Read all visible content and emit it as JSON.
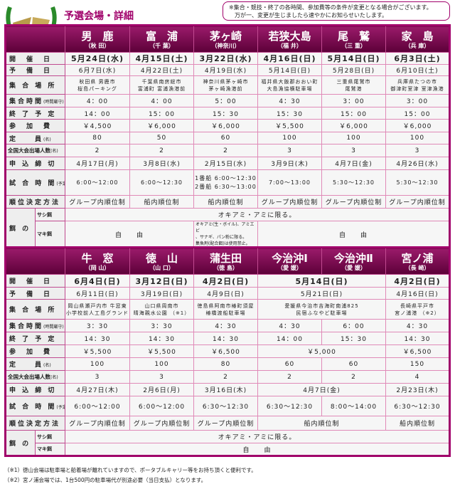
{
  "header": {
    "title": "予選会場・詳細",
    "notice_line1": "※集合・競技・終了の各時間、参加費等の条件が変更となる場合がございます。",
    "notice_line2": "万が一、変更が生じましたら速やかにお知らせいたします。",
    "logo_icon": "laurel-fish-logo"
  },
  "colors": {
    "accent": "#a0006a",
    "header_bg": "#5c0038",
    "sunday": "#e0001c",
    "saturday": "#1040c0"
  },
  "tables": [
    {
      "venues": [
        {
          "name": "男　鹿",
          "pref": "（秋 田）"
        },
        {
          "name": "富　浦",
          "pref": "（千 葉）"
        },
        {
          "name": "茅ヶ崎",
          "pref": "（神奈川）"
        },
        {
          "name": "若狭大島",
          "pref": "（福 井）"
        },
        {
          "name": "尾　鷲",
          "pref": "（三 重）"
        },
        {
          "name": "家　島",
          "pref": "（兵 庫）"
        }
      ],
      "rows": [
        {
          "label": "開　催　日",
          "cls": "big",
          "h": 16,
          "cells": [
            {
              "t": "5月24日(水)"
            },
            {
              "t": "4月15日(土)"
            },
            {
              "t": "3月22日(水)"
            },
            {
              "t": "4月16日(日)"
            },
            {
              "t": "5月14日(日)"
            },
            {
              "t": "6月3日(土)"
            }
          ]
        },
        {
          "label": "予　備　日",
          "h": 16,
          "cells": [
            {
              "t": "6月7日(水)"
            },
            {
              "t": "4月22日(土)"
            },
            {
              "t": "4月19日(水)"
            },
            {
              "t": "5月14日(日)"
            },
            {
              "t": "5月28日(日)"
            },
            {
              "t": "6月10日(土)"
            }
          ]
        },
        {
          "label": "集 合 場 所",
          "cls": "small",
          "h": 26,
          "cells": [
            {
              "t": "秋田県 男鹿市\n桜島パーキング"
            },
            {
              "t": "千葉県南房総市\n富浦町 富浦漁港前"
            },
            {
              "t": "神奈川県茅ヶ崎市\n茅ヶ崎漁港前"
            },
            {
              "t": "福井県大飯郡おおい町\n大島漁協横駐車場"
            },
            {
              "t": "三重県尾鷲市\n尾鷲港"
            },
            {
              "t": "兵庫県たつの市\n御津町室津 室津漁港"
            }
          ]
        },
        {
          "label": "集合時間",
          "sub": "(時間厳守)",
          "h": 18,
          "cells": [
            {
              "t": "4：00"
            },
            {
              "t": "4：00"
            },
            {
              "t": "5：00"
            },
            {
              "t": "4：30"
            },
            {
              "t": "3：00"
            },
            {
              "t": "3：00"
            }
          ]
        },
        {
          "label": "終 了 予 定",
          "h": 17,
          "cells": [
            {
              "t": "14：00"
            },
            {
              "t": "15：00"
            },
            {
              "t": "15：30"
            },
            {
              "t": "15：30"
            },
            {
              "t": "15：00"
            },
            {
              "t": "15：00"
            }
          ]
        },
        {
          "label": "参　加　費",
          "h": 18,
          "cells": [
            {
              "t": "￥4,500"
            },
            {
              "t": "￥6,000"
            },
            {
              "t": "￥6,000"
            },
            {
              "t": "￥5,500"
            },
            {
              "t": "￥6,000"
            },
            {
              "t": "￥6,000"
            }
          ]
        },
        {
          "label": "定　　員",
          "sub": "(名)",
          "h": 17,
          "cells": [
            {
              "t": "80"
            },
            {
              "t": "50"
            },
            {
              "t": "60"
            },
            {
              "t": "100"
            },
            {
              "t": "100"
            },
            {
              "t": "100"
            }
          ]
        },
        {
          "label": "全国大会出場人数",
          "sub": "(名)",
          "tight": true,
          "h": 18,
          "cells": [
            {
              "t": "2"
            },
            {
              "t": "2"
            },
            {
              "t": "2"
            },
            {
              "t": "3"
            },
            {
              "t": "3"
            },
            {
              "t": "3"
            }
          ]
        },
        {
          "label": "申 込 締 切",
          "h": 18,
          "cells": [
            {
              "t": "4月17日(月)"
            },
            {
              "t": "3月8日(水)"
            },
            {
              "t": "2月15日(水)"
            },
            {
              "t": "3月9日(木)"
            },
            {
              "t": "4月7日(金)"
            },
            {
              "t": "4月26日(水)"
            }
          ]
        },
        {
          "label": "試 合 時 間",
          "sub": "(予定)",
          "cls": "multi",
          "h": 36,
          "cells": [
            {
              "t": "6:00～12:00"
            },
            {
              "t": "6:00～12:30"
            },
            {
              "t": "1番船 6:00～12:30\n2番船 6:30～13:00"
            },
            {
              "t": "7:00～13:00"
            },
            {
              "t": "5:30～12:30"
            },
            {
              "t": "5:30～12:30"
            }
          ]
        },
        {
          "label": "順位決定方法",
          "h": 18,
          "cells": [
            {
              "t": "グループ内順位制"
            },
            {
              "t": "船内順位制"
            },
            {
              "t": "船内順位制"
            },
            {
              "t": "グループ内順位制"
            },
            {
              "t": "グループ内順位制"
            },
            {
              "t": "グループ内順位制"
            }
          ]
        }
      ],
      "bait": {
        "label": "餌 の 規 定",
        "sashi_label": "サシ餌",
        "maki_label": "マキ餌",
        "sashi": [
          {
            "t": "オキアミ・アミに限る。",
            "span": 6
          }
        ],
        "maki": [
          {
            "t": "自　　由",
            "span": 2
          },
          {
            "t": "オキアミ(生・ボイル)、アミエビ\n、サナギ、パン粉に限る。\n集魚剤(配合餌)は使用禁止。",
            "small": true
          },
          {
            "t": "自　　由",
            "span": 3
          }
        ],
        "maki_h": 38
      }
    },
    {
      "venues": [
        {
          "name": "牛　窓",
          "pref": "（岡 山）"
        },
        {
          "name": "徳　山",
          "pref": "（山 口）"
        },
        {
          "name": "蒲生田",
          "pref": "（徳 島）"
        },
        {
          "name": "今治沖Ⅰ",
          "pref": "（愛 媛）"
        },
        {
          "name": "今治沖Ⅱ",
          "pref": "（愛 媛）"
        },
        {
          "name": "宮ノ浦",
          "pref": "（長 崎）"
        }
      ],
      "rows": [
        {
          "label": "開　催　日",
          "cls": "big",
          "h": 18,
          "cells": [
            {
              "t": "6月4日(日)"
            },
            {
              "t": "3月12日(日)"
            },
            {
              "t": "4月2日(日)"
            },
            {
              "t": "5月14日(日)",
              "span": 2
            },
            {
              "t": "4月2日(日)"
            }
          ]
        },
        {
          "label": "予　備　日",
          "h": 17,
          "cells": [
            {
              "t": "6月11日(日)"
            },
            {
              "t": "3月19日(日)"
            },
            {
              "t": "4月9日(日)"
            },
            {
              "t": "5月21日(日)",
              "span": 2
            },
            {
              "t": "4月16日(日)"
            }
          ]
        },
        {
          "label": "集 合 場 所",
          "cls": "small",
          "h": 28,
          "cells": [
            {
              "t": "岡山県瀬戸内市 牛窓東\n小学校前人工島グランド"
            },
            {
              "t": "山口県周南市\n晴海親水公園 （※1）"
            },
            {
              "t": "徳島県阿南市椿町須屋\n椿橋渡船駐車場"
            },
            {
              "t": "愛媛県今治市吉海町南浦825\n民宿ふなやど駐車場",
              "span": 2
            },
            {
              "t": "長崎県平戸市\n宮ノ浦港 （※2）"
            }
          ]
        },
        {
          "label": "集合時間",
          "sub": "(時間厳守)",
          "h": 18,
          "cells": [
            {
              "t": "3：30"
            },
            {
              "t": "3：30"
            },
            {
              "t": "4：30"
            },
            {
              "t": "4：30"
            },
            {
              "t": "6：00"
            },
            {
              "t": "4：30"
            }
          ]
        },
        {
          "label": "終 了 予 定",
          "h": 18,
          "cells": [
            {
              "t": "14：30"
            },
            {
              "t": "14：30"
            },
            {
              "t": "14：30"
            },
            {
              "t": "14：00"
            },
            {
              "t": "15：30"
            },
            {
              "t": "14：30"
            }
          ]
        },
        {
          "label": "参　加　費",
          "h": 18,
          "cells": [
            {
              "t": "￥5,500"
            },
            {
              "t": "￥5,500"
            },
            {
              "t": "￥6,500"
            },
            {
              "t": "￥5,000",
              "span": 2
            },
            {
              "t": "￥6,500"
            }
          ]
        },
        {
          "label": "定　　員",
          "sub": "(名)",
          "h": 18,
          "cells": [
            {
              "t": "100"
            },
            {
              "t": "100"
            },
            {
              "t": "80"
            },
            {
              "t": "60"
            },
            {
              "t": "60"
            },
            {
              "t": "150"
            }
          ]
        },
        {
          "label": "全国大会出場人数",
          "sub": "(名)",
          "tight": true,
          "h": 18,
          "cells": [
            {
              "t": "3"
            },
            {
              "t": "3"
            },
            {
              "t": "2"
            },
            {
              "t": "2"
            },
            {
              "t": "2"
            },
            {
              "t": "4"
            }
          ]
        },
        {
          "label": "申 込 締 切",
          "h": 18,
          "cells": [
            {
              "t": "4月27日(木)"
            },
            {
              "t": "2月6日(月)"
            },
            {
              "t": "3月16日(木)"
            },
            {
              "t": "4月7日(金)",
              "span": 2
            },
            {
              "t": "2月23日(木)"
            }
          ]
        },
        {
          "label": "試 合 時 間",
          "sub": "(予定)",
          "h": 28,
          "cells": [
            {
              "t": "6:00～12:00"
            },
            {
              "t": "6:00～12:00"
            },
            {
              "t": "6:30～12:30"
            },
            {
              "t": "6:30～12:30"
            },
            {
              "t": "8:00～14:00"
            },
            {
              "t": "6:30～12:30"
            }
          ]
        },
        {
          "label": "順位決定方法",
          "h": 20,
          "cells": [
            {
              "t": "グループ内順位制"
            },
            {
              "t": "グループ内順位制"
            },
            {
              "t": "グループ内順位制"
            },
            {
              "t": "船内順位制",
              "span": 2
            },
            {
              "t": "船内順位制"
            }
          ]
        }
      ],
      "bait": {
        "label": "餌 の 規 定",
        "sashi_label": "サシ餌",
        "maki_label": "マキ餌",
        "sashi": [
          {
            "t": "オキアミ・アミに限る。",
            "span": 6
          }
        ],
        "maki": [
          {
            "t": "自　　由",
            "span": 6
          }
        ],
        "maki_h": 18
      }
    }
  ],
  "footnotes": [
    "（※1）徳山会場は駐車場と船着場が離れていますので、ポータブルキャリー等をお持ち頂くと便利です。",
    "（※2）宮ノ浦会場では、1台500円の駐車場代が別途必要（当日支払）となります。"
  ]
}
